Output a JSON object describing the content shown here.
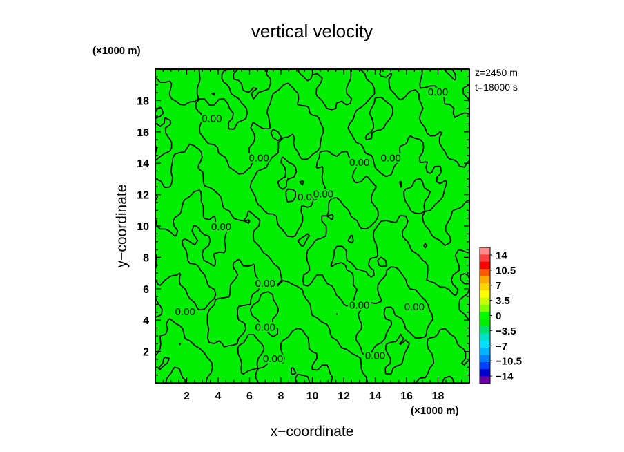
{
  "chart_data": {
    "type": "heatmap",
    "title": "vertical velocity",
    "xlabel": "x−coordinate",
    "ylabel": "y−coordinate",
    "x_unit_label": "(×1000 m)",
    "y_unit_label": "(×1000 m)",
    "info_lines": [
      "z=2450 m",
      "t=18000 s"
    ],
    "xlim": [
      0,
      20
    ],
    "ylim": [
      0,
      20
    ],
    "x_ticks": [
      2,
      4,
      6,
      8,
      10,
      12,
      14,
      16,
      18
    ],
    "y_ticks": [
      2,
      4,
      6,
      8,
      10,
      12,
      14,
      16,
      18
    ],
    "field_color": "#00ee00",
    "field_value": 0,
    "contour_level_label": "0.00",
    "contour_label_positions": [
      {
        "x": 18.0,
        "y": 18.5
      },
      {
        "x": 3.6,
        "y": 16.8
      },
      {
        "x": 6.6,
        "y": 14.3
      },
      {
        "x": 15.0,
        "y": 14.3
      },
      {
        "x": 13.0,
        "y": 14.0
      },
      {
        "x": 9.7,
        "y": 11.8
      },
      {
        "x": 10.7,
        "y": 12.0
      },
      {
        "x": 4.2,
        "y": 9.9
      },
      {
        "x": 7.0,
        "y": 6.3
      },
      {
        "x": 1.9,
        "y": 4.5
      },
      {
        "x": 13.0,
        "y": 4.9
      },
      {
        "x": 16.5,
        "y": 4.8
      },
      {
        "x": 7.0,
        "y": 3.5
      },
      {
        "x": 7.5,
        "y": 1.5
      },
      {
        "x": 14.0,
        "y": 1.7
      }
    ],
    "colorbar": {
      "labels": [
        "14",
        "10.5",
        "7",
        "3.5",
        "0",
        "−3.5",
        "−7",
        "−10.5",
        "−14"
      ],
      "colors": [
        "#ff8c8c",
        "#ff4040",
        "#ff0000",
        "#ff5a00",
        "#ffaa00",
        "#ffd400",
        "#ffff00",
        "#c8ff00",
        "#80ff00",
        "#00ff00",
        "#00ee00",
        "#00e070",
        "#00e0c8",
        "#00e0ff",
        "#00b4ff",
        "#0080ff",
        "#0040ff",
        "#0000d0",
        "#6a00a0"
      ]
    }
  }
}
